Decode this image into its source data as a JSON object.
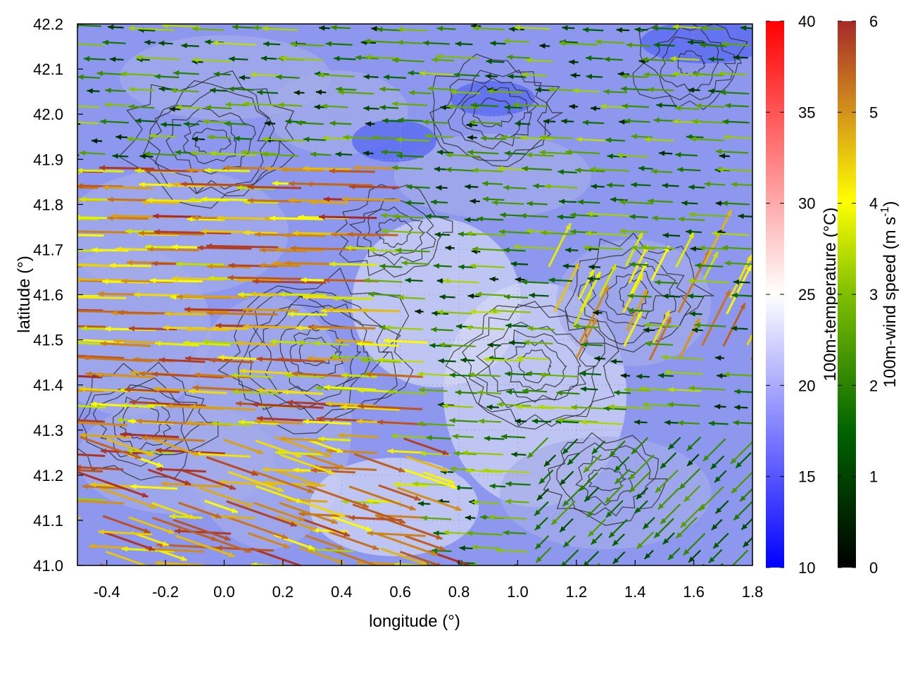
{
  "chart_data": {
    "type": "heatmap",
    "title": "",
    "xlabel": "longitude (°)",
    "ylabel": "latitude (°)",
    "xlim": [
      -0.5,
      1.8
    ],
    "ylim": [
      41.0,
      42.2
    ],
    "x_ticks": [
      "-0.4",
      "-0.2",
      "0.0",
      "0.2",
      "0.4",
      "0.6",
      "0.8",
      "1.0",
      "1.2",
      "1.4",
      "1.6",
      "1.8"
    ],
    "x_tick_values": [
      -0.4,
      -0.2,
      0.0,
      0.2,
      0.4,
      0.6,
      0.8,
      1.0,
      1.2,
      1.4,
      1.6,
      1.8
    ],
    "y_ticks": [
      "41.0",
      "41.1",
      "41.2",
      "41.3",
      "41.4",
      "41.5",
      "41.6",
      "41.7",
      "41.8",
      "41.9",
      "42.0",
      "42.1",
      "42.2"
    ],
    "y_tick_values": [
      41.0,
      41.1,
      41.2,
      41.3,
      41.4,
      41.5,
      41.6,
      41.7,
      41.8,
      41.9,
      42.0,
      42.1,
      42.2
    ],
    "grid": true,
    "layers": [
      {
        "name": "100m-temperature",
        "kind": "heatmap",
        "unit": "°C"
      },
      {
        "name": "100m-wind speed",
        "kind": "vector field",
        "unit": "m s-1"
      },
      {
        "name": "terrain",
        "kind": "contour lines"
      }
    ],
    "colorbars": [
      {
        "label": "100m-temperature (°C)",
        "range": [
          10,
          40
        ],
        "ticks": [
          "10",
          "15",
          "20",
          "25",
          "30",
          "35",
          "40"
        ],
        "tick_values": [
          10,
          15,
          20,
          25,
          30,
          35,
          40
        ],
        "colors": [
          "#0000ff",
          "#ffffff",
          "#ff0000"
        ]
      },
      {
        "label_main": "100m-wind speed (m s",
        "label_sup": "-1",
        "label_end": ")",
        "range": [
          0,
          6
        ],
        "ticks": [
          "0",
          "1",
          "2",
          "3",
          "4",
          "5",
          "6"
        ],
        "tick_values": [
          0,
          1,
          2,
          3,
          4,
          5,
          6
        ],
        "colors": [
          "#000000",
          "#006400",
          "#7fbf00",
          "#ffff00",
          "#d4951a",
          "#a52a2a"
        ]
      }
    ],
    "background_colors": [
      "#5a6af0",
      "#a4ade8",
      "#d4d8f4"
    ],
    "wind_regions": [
      {
        "area": "west, lat 41.5-41.9",
        "direction": "westward",
        "speed_range": [
          4,
          6
        ]
      },
      {
        "area": "west, lat 41.0-41.5",
        "direction": "westward / south-eastward",
        "speed_range": [
          4,
          6
        ]
      },
      {
        "area": "east, lat 41.0-41.3",
        "direction": "south-westward",
        "speed_range": [
          0,
          2.5
        ]
      },
      {
        "area": "north-east",
        "direction": "westward",
        "speed_range": [
          0,
          3
        ]
      }
    ]
  }
}
